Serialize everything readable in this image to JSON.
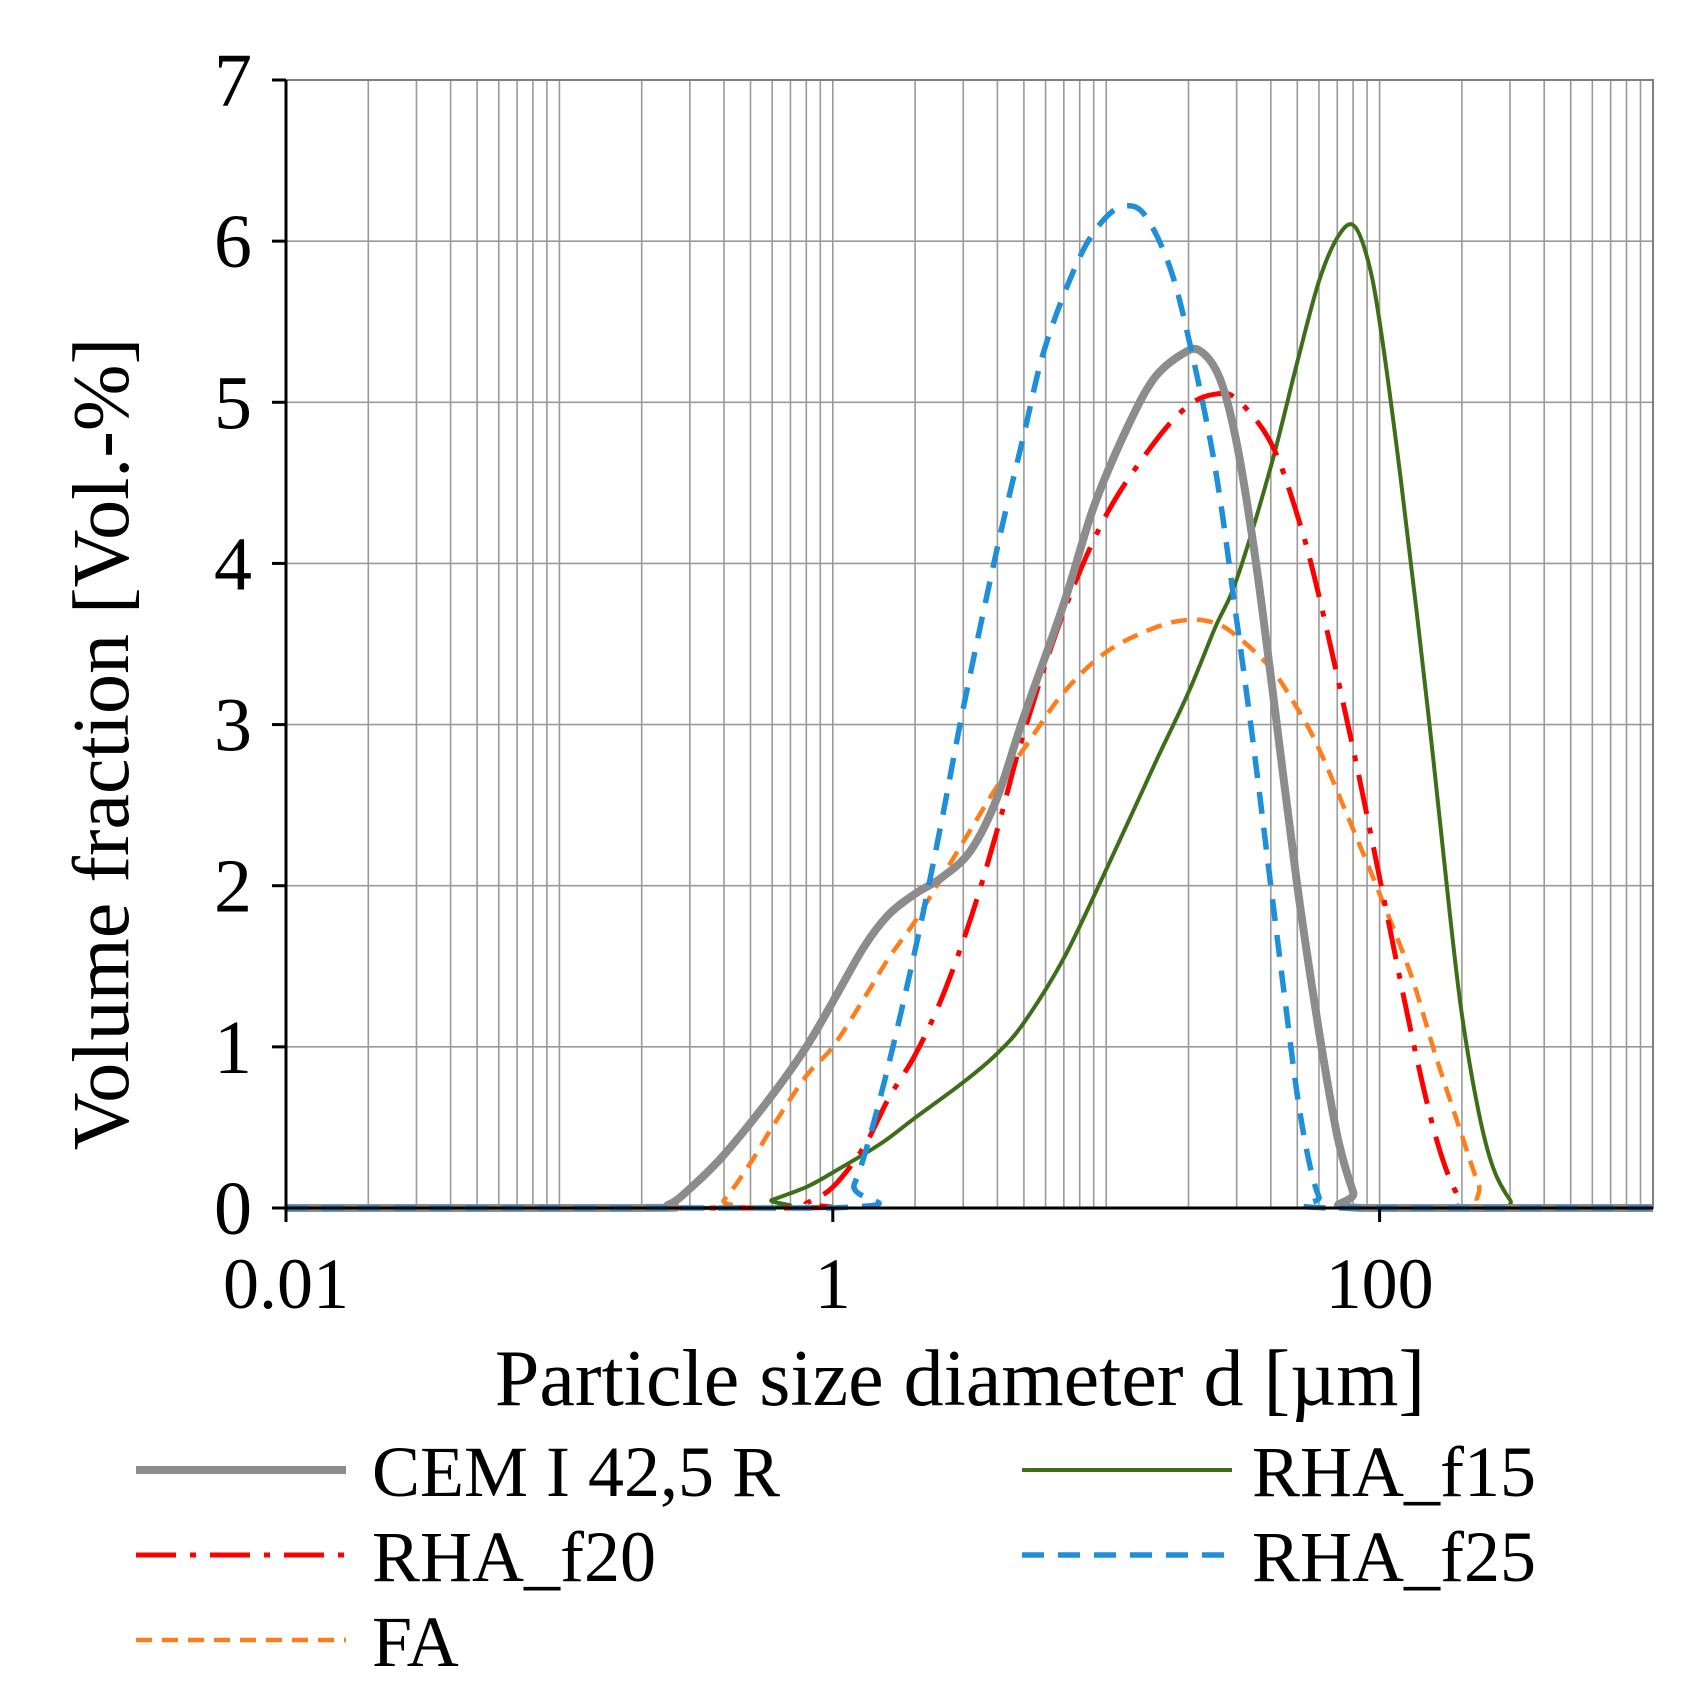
{
  "chart_data": {
    "type": "line",
    "x_scale": "log",
    "title": "",
    "xlabel": "Particle size diameter d [µm]",
    "ylabel": "Volume fraction [Vol.-%]",
    "xlim": [
      0.01,
      1000
    ],
    "ylim": [
      0,
      7
    ],
    "x_major_ticks": [
      0.01,
      1,
      100
    ],
    "x_tick_labels": [
      "0.01",
      "1",
      "100"
    ],
    "y_ticks": [
      0,
      1,
      2,
      3,
      4,
      5,
      6,
      7
    ],
    "y_tick_labels": [
      "0",
      "1",
      "2",
      "3",
      "4",
      "5",
      "6",
      "7"
    ],
    "grid": true,
    "legend_position": "bottom",
    "series": [
      {
        "name": "CEM I 42,5 R",
        "color": "#8c8c8c",
        "style": "solid-thick",
        "points": [
          [
            0.01,
            0
          ],
          [
            0.2,
            0
          ],
          [
            0.25,
            0.02
          ],
          [
            0.3,
            0.12
          ],
          [
            0.4,
            0.33
          ],
          [
            0.6,
            0.7
          ],
          [
            0.8,
            1.0
          ],
          [
            1.0,
            1.28
          ],
          [
            1.3,
            1.62
          ],
          [
            1.6,
            1.82
          ],
          [
            2.0,
            1.95
          ],
          [
            2.5,
            2.05
          ],
          [
            3.2,
            2.22
          ],
          [
            4.0,
            2.55
          ],
          [
            5.0,
            3.05
          ],
          [
            7.0,
            3.75
          ],
          [
            9.0,
            4.35
          ],
          [
            12,
            4.85
          ],
          [
            15,
            5.15
          ],
          [
            19,
            5.3
          ],
          [
            22,
            5.32
          ],
          [
            26,
            5.15
          ],
          [
            30,
            4.75
          ],
          [
            35,
            4.05
          ],
          [
            40,
            3.3
          ],
          [
            50,
            2.0
          ],
          [
            60,
            1.1
          ],
          [
            70,
            0.45
          ],
          [
            80,
            0.1
          ],
          [
            86,
            0
          ],
          [
            1000,
            0
          ]
        ]
      },
      {
        "name": "RHA_f15",
        "color": "#3f6e1a",
        "style": "solid",
        "points": [
          [
            0.01,
            0
          ],
          [
            0.5,
            0
          ],
          [
            0.6,
            0.05
          ],
          [
            0.8,
            0.13
          ],
          [
            1.0,
            0.22
          ],
          [
            1.5,
            0.4
          ],
          [
            2.0,
            0.56
          ],
          [
            3.0,
            0.78
          ],
          [
            4.0,
            0.96
          ],
          [
            5.0,
            1.15
          ],
          [
            7.0,
            1.55
          ],
          [
            10,
            2.1
          ],
          [
            15,
            2.75
          ],
          [
            20,
            3.2
          ],
          [
            25,
            3.6
          ],
          [
            30,
            3.9
          ],
          [
            40,
            4.6
          ],
          [
            50,
            5.25
          ],
          [
            60,
            5.75
          ],
          [
            70,
            6.02
          ],
          [
            80,
            6.1
          ],
          [
            90,
            5.9
          ],
          [
            100,
            5.5
          ],
          [
            120,
            4.5
          ],
          [
            150,
            3.1
          ],
          [
            180,
            1.85
          ],
          [
            200,
            1.2
          ],
          [
            230,
            0.6
          ],
          [
            260,
            0.25
          ],
          [
            300,
            0.05
          ],
          [
            330,
            0
          ],
          [
            1000,
            0
          ]
        ]
      },
      {
        "name": "RHA_f20",
        "color": "#ff0000",
        "style": "dash-dot",
        "points": [
          [
            0.01,
            0
          ],
          [
            0.7,
            0
          ],
          [
            0.8,
            0.03
          ],
          [
            1.0,
            0.13
          ],
          [
            1.3,
            0.38
          ],
          [
            1.6,
            0.68
          ],
          [
            2.0,
            0.95
          ],
          [
            2.5,
            1.3
          ],
          [
            3.2,
            1.8
          ],
          [
            4.0,
            2.35
          ],
          [
            5.0,
            2.95
          ],
          [
            7.0,
            3.7
          ],
          [
            10,
            4.3
          ],
          [
            15,
            4.75
          ],
          [
            20,
            4.98
          ],
          [
            25,
            5.05
          ],
          [
            30,
            5.02
          ],
          [
            40,
            4.75
          ],
          [
            50,
            4.3
          ],
          [
            60,
            3.8
          ],
          [
            80,
            2.85
          ],
          [
            100,
            2.05
          ],
          [
            130,
            1.1
          ],
          [
            160,
            0.45
          ],
          [
            190,
            0.1
          ],
          [
            220,
            0
          ],
          [
            1000,
            0
          ]
        ]
      },
      {
        "name": "RHA_f25",
        "color": "#1f8fd9",
        "style": "dashed",
        "points": [
          [
            0.01,
            0
          ],
          [
            1.0,
            0
          ],
          [
            1.2,
            0.15
          ],
          [
            1.5,
            0.7
          ],
          [
            2.0,
            1.6
          ],
          [
            2.5,
            2.4
          ],
          [
            3.0,
            3.1
          ],
          [
            4.0,
            4.1
          ],
          [
            5.0,
            4.8
          ],
          [
            6.0,
            5.35
          ],
          [
            8.0,
            5.9
          ],
          [
            10,
            6.15
          ],
          [
            12,
            6.22
          ],
          [
            14,
            6.15
          ],
          [
            17,
            5.85
          ],
          [
            20,
            5.4
          ],
          [
            25,
            4.6
          ],
          [
            30,
            3.65
          ],
          [
            35,
            2.8
          ],
          [
            40,
            2.0
          ],
          [
            45,
            1.3
          ],
          [
            50,
            0.7
          ],
          [
            55,
            0.3
          ],
          [
            60,
            0.07
          ],
          [
            65,
            0
          ],
          [
            1000,
            0
          ]
        ]
      },
      {
        "name": "FA",
        "color": "#ff7d1a",
        "style": "dashed-short",
        "points": [
          [
            0.01,
            0
          ],
          [
            0.35,
            0
          ],
          [
            0.4,
            0.05
          ],
          [
            0.5,
            0.28
          ],
          [
            0.6,
            0.5
          ],
          [
            0.8,
            0.82
          ],
          [
            1.0,
            1.0
          ],
          [
            1.3,
            1.3
          ],
          [
            1.6,
            1.55
          ],
          [
            2.0,
            1.78
          ],
          [
            2.5,
            2.05
          ],
          [
            3.2,
            2.35
          ],
          [
            4.0,
            2.62
          ],
          [
            5.0,
            2.85
          ],
          [
            7.0,
            3.2
          ],
          [
            10,
            3.45
          ],
          [
            15,
            3.6
          ],
          [
            20,
            3.65
          ],
          [
            25,
            3.63
          ],
          [
            30,
            3.55
          ],
          [
            40,
            3.35
          ],
          [
            50,
            3.1
          ],
          [
            60,
            2.85
          ],
          [
            80,
            2.35
          ],
          [
            100,
            1.95
          ],
          [
            130,
            1.45
          ],
          [
            160,
            0.95
          ],
          [
            200,
            0.45
          ],
          [
            230,
            0.15
          ],
          [
            260,
            0
          ],
          [
            1000,
            0
          ]
        ]
      }
    ]
  }
}
